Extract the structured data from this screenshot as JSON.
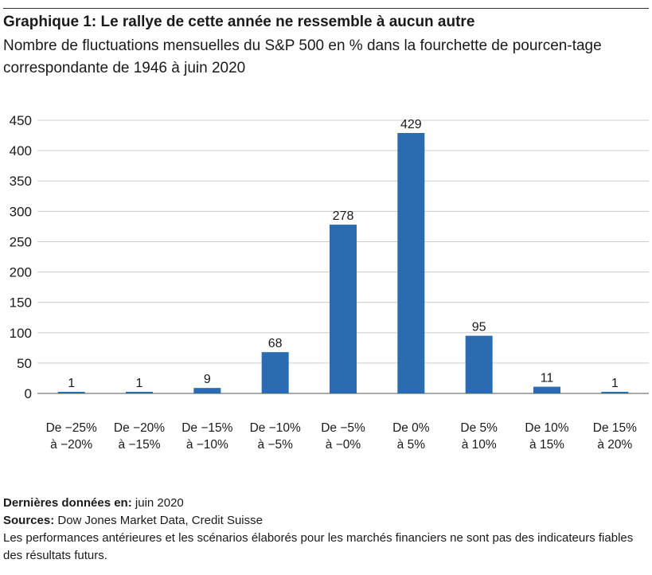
{
  "title": "Graphique 1: Le rallye de cette année ne ressemble à aucun autre",
  "subtitle": "Nombre de fluctuations mensuelles du S&P 500 en % dans la fourchette de pourcen-tage correspondante de 1946 à juin 2020",
  "chart_data": {
    "type": "bar",
    "categories": [
      [
        "De −25%",
        "à −20%"
      ],
      [
        "De −20%",
        "à −15%"
      ],
      [
        "De −15%",
        "à −10%"
      ],
      [
        "De −10%",
        "à −5%"
      ],
      [
        "De −5%",
        "à −0%"
      ],
      [
        "De 0%",
        "à 5%"
      ],
      [
        "De 5%",
        "à 10%"
      ],
      [
        "De 10%",
        "à 15%"
      ],
      [
        "De 15%",
        "à 20%"
      ]
    ],
    "values": [
      1,
      1,
      9,
      68,
      278,
      429,
      95,
      11,
      1
    ],
    "ylim": [
      0,
      450
    ],
    "yticks": [
      0,
      50,
      100,
      150,
      200,
      250,
      300,
      350,
      400,
      450
    ],
    "grid": true,
    "bar_color": "#2b6cb0",
    "gridline_color": "#cccccc"
  },
  "footer": {
    "last_data_label": "Dernières données en:",
    "last_data_value": "juin 2020",
    "sources_label": "Sources:",
    "sources_value": "Dow Jones Market Data, Credit Suisse",
    "disclaimer": "Les performances antérieures et les scénarios élaborés pour les marchés financiers ne sont pas des indicateurs fiables des résultats futurs."
  }
}
